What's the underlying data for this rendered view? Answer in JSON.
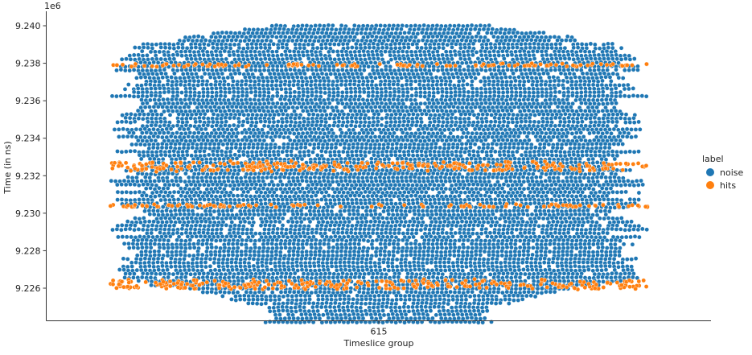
{
  "chart_data": {
    "type": "scatter",
    "style": "swarm",
    "xlabel": "Timeslice group",
    "ylabel": "Time (in ns)",
    "y_offset_label": "1e6",
    "categories": [
      "615"
    ],
    "ylim": [
      9.2245,
      9.2405
    ],
    "yticks": [
      9.226,
      9.228,
      9.23,
      9.232,
      9.234,
      9.236,
      9.238,
      9.24
    ],
    "ytick_labels": [
      "9.226",
      "9.228",
      "9.230",
      "9.232",
      "9.234",
      "9.236",
      "9.238",
      "9.240"
    ],
    "legend": {
      "title": "label",
      "placement": "center-right",
      "entries": [
        "noise",
        "hits"
      ]
    },
    "series": [
      {
        "name": "noise",
        "color": "#1f77b4",
        "y_range": [
          9.225,
          9.24
        ]
      },
      {
        "name": "hits",
        "color": "#ff7f0e",
        "y_bands": [
          {
            "y": 9.2262,
            "spread": 0.0003
          },
          {
            "y": 9.2304,
            "spread": 8e-05
          },
          {
            "y": 9.2325,
            "spread": 0.0003
          },
          {
            "y": 9.2379,
            "spread": 0.0001
          }
        ]
      }
    ]
  }
}
